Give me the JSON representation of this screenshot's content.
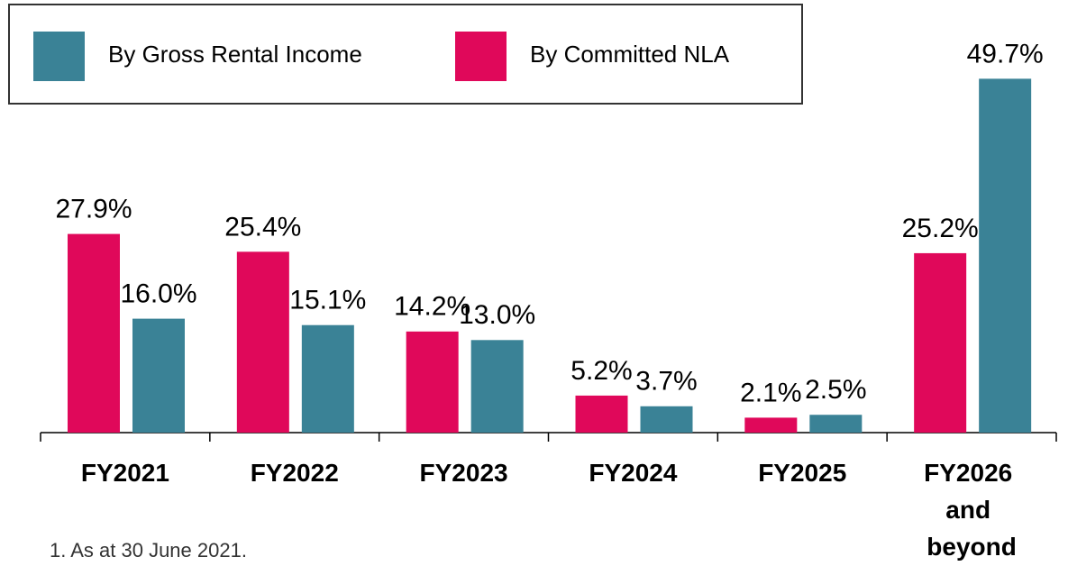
{
  "chart_data": {
    "type": "bar",
    "categories": [
      "FY2021",
      "FY2022",
      "FY2023",
      "FY2024",
      "FY2025",
      "FY2026 and beyond"
    ],
    "series": [
      {
        "name": "By Gross Rental Income",
        "color": "#3a8296",
        "values": [
          16.0,
          15.1,
          13.0,
          3.7,
          2.5,
          49.7
        ],
        "value_labels": [
          "16.0%",
          "15.1%",
          "13.0%",
          "3.7%",
          "2.5%",
          "49.7%"
        ]
      },
      {
        "name": "By Committed NLA",
        "color": "#e0085a",
        "values": [
          27.9,
          25.4,
          14.2,
          5.2,
          2.1,
          25.2
        ],
        "value_labels": [
          "27.9%",
          "25.4%",
          "14.2%",
          "5.2%",
          "2.1%",
          "25.2%"
        ]
      }
    ],
    "ylim": [
      0,
      50
    ],
    "footnote": "1.  As at 30 June 2021."
  }
}
